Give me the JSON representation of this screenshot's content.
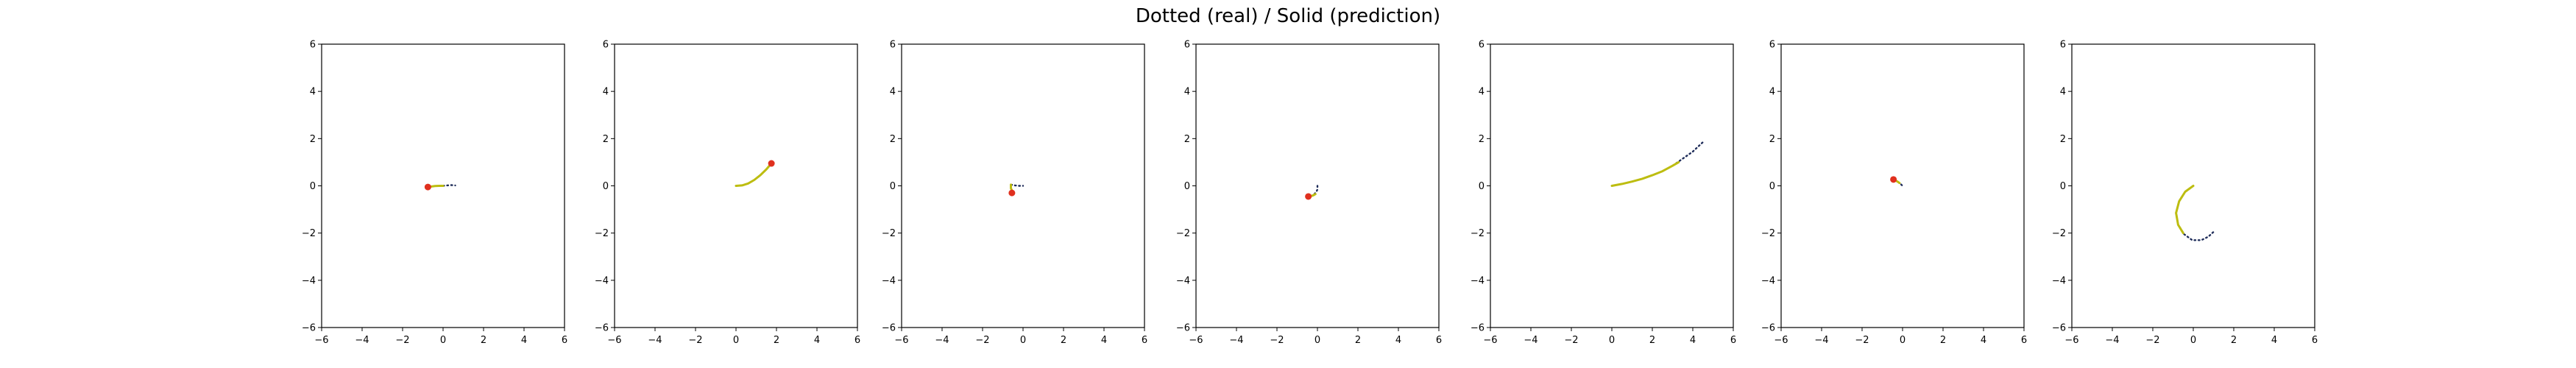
{
  "figure": {
    "title": "Dotted (real) / Solid (prediction)"
  },
  "style": {
    "real_color": "#1f2d5a",
    "prediction_color": "#bdbd10",
    "marker_color": "#e0301e"
  },
  "chart_data": [
    {
      "type": "line",
      "xlim": [
        -6,
        6
      ],
      "ylim": [
        -6,
        6
      ],
      "xticks": [
        -6,
        -4,
        -2,
        0,
        2,
        4,
        6
      ],
      "yticks": [
        -6,
        -4,
        -2,
        0,
        2,
        4,
        6
      ],
      "grid": false,
      "series": [
        {
          "style": "dotted",
          "x": [
            0,
            0.2,
            0.4,
            0.6
          ],
          "y": [
            0,
            0.02,
            0.03,
            0.02
          ]
        },
        {
          "style": "solid",
          "x": [
            0,
            -0.2,
            -0.4,
            -0.6,
            -0.75
          ],
          "y": [
            0,
            0,
            -0.01,
            -0.03,
            -0.05
          ]
        }
      ],
      "marker": {
        "x": -0.75,
        "y": -0.05
      }
    },
    {
      "type": "line",
      "xlim": [
        -6,
        6
      ],
      "ylim": [
        -6,
        6
      ],
      "xticks": [
        -6,
        -4,
        -2,
        0,
        2,
        4,
        6
      ],
      "yticks": [
        -6,
        -4,
        -2,
        0,
        2,
        4,
        6
      ],
      "grid": false,
      "series": [
        {
          "style": "dotted",
          "x": [
            0,
            0.3,
            0.6,
            0.9,
            1.2,
            1.5,
            1.75
          ],
          "y": [
            0,
            0.02,
            0.1,
            0.25,
            0.45,
            0.7,
            0.95
          ]
        },
        {
          "style": "solid",
          "x": [
            0,
            0.3,
            0.6,
            0.9,
            1.2,
            1.5,
            1.75
          ],
          "y": [
            0,
            0.02,
            0.1,
            0.25,
            0.45,
            0.7,
            0.95
          ]
        }
      ],
      "marker": {
        "x": 1.75,
        "y": 0.95
      }
    },
    {
      "type": "line",
      "xlim": [
        -6,
        6
      ],
      "ylim": [
        -6,
        6
      ],
      "xticks": [
        -6,
        -4,
        -2,
        0,
        2,
        4,
        6
      ],
      "yticks": [
        -6,
        -4,
        -2,
        0,
        2,
        4,
        6
      ],
      "grid": false,
      "series": [
        {
          "style": "dotted",
          "x": [
            -0.6,
            -0.4,
            -0.2,
            0
          ],
          "y": [
            0.05,
            0.02,
            0,
            0
          ]
        },
        {
          "style": "solid",
          "x": [
            -0.6,
            -0.6,
            -0.55,
            -0.55
          ],
          "y": [
            0.05,
            -0.1,
            -0.2,
            -0.3
          ]
        }
      ],
      "marker": {
        "x": -0.55,
        "y": -0.3
      }
    },
    {
      "type": "line",
      "xlim": [
        -6,
        6
      ],
      "ylim": [
        -6,
        6
      ],
      "xticks": [
        -6,
        -4,
        -2,
        0,
        2,
        4,
        6
      ],
      "yticks": [
        -6,
        -4,
        -2,
        0,
        2,
        4,
        6
      ],
      "grid": false,
      "series": [
        {
          "style": "dotted",
          "x": [
            0,
            0,
            -0.05,
            -0.15,
            -0.3,
            -0.45
          ],
          "y": [
            0,
            -0.15,
            -0.25,
            -0.35,
            -0.42,
            -0.45
          ]
        },
        {
          "style": "solid",
          "x": [
            -0.1,
            -0.2,
            -0.3,
            -0.45
          ],
          "y": [
            -0.35,
            -0.4,
            -0.43,
            -0.45
          ]
        }
      ],
      "marker": {
        "x": -0.45,
        "y": -0.45
      }
    },
    {
      "type": "line",
      "xlim": [
        -6,
        6
      ],
      "ylim": [
        -6,
        6
      ],
      "xticks": [
        -6,
        -4,
        -2,
        0,
        2,
        4,
        6
      ],
      "yticks": [
        -6,
        -4,
        -2,
        0,
        2,
        4,
        6
      ],
      "grid": false,
      "series": [
        {
          "style": "dotted",
          "x": [
            0,
            0.5,
            1,
            1.5,
            2,
            2.5,
            3,
            3.5,
            4,
            4.5
          ],
          "y": [
            0,
            0.08,
            0.18,
            0.3,
            0.45,
            0.62,
            0.85,
            1.15,
            1.45,
            1.85
          ]
        },
        {
          "style": "solid",
          "x": [
            0,
            0.5,
            1,
            1.5,
            2,
            2.5,
            3,
            3.3
          ],
          "y": [
            0,
            0.08,
            0.18,
            0.3,
            0.45,
            0.62,
            0.85,
            1.0
          ]
        }
      ]
    },
    {
      "type": "line",
      "xlim": [
        -6,
        6
      ],
      "ylim": [
        -6,
        6
      ],
      "xticks": [
        -6,
        -4,
        -2,
        0,
        2,
        4,
        6
      ],
      "yticks": [
        -6,
        -4,
        -2,
        0,
        2,
        4,
        6
      ],
      "grid": false,
      "series": [
        {
          "style": "dotted",
          "x": [
            -0.4,
            -0.25,
            -0.1,
            0
          ],
          "y": [
            0.25,
            0.18,
            0.08,
            0
          ]
        },
        {
          "style": "solid",
          "x": [
            -0.4,
            -0.25,
            -0.15
          ],
          "y": [
            0.25,
            0.18,
            0.12
          ]
        }
      ],
      "marker": {
        "x": -0.45,
        "y": 0.27
      }
    },
    {
      "type": "line",
      "xlim": [
        -6,
        6
      ],
      "ylim": [
        -6,
        6
      ],
      "xticks": [
        -6,
        -4,
        -2,
        0,
        2,
        4,
        6
      ],
      "yticks": [
        -6,
        -4,
        -2,
        0,
        2,
        4,
        6
      ],
      "grid": false,
      "series": [
        {
          "style": "dotted",
          "x": [
            0,
            -0.4,
            -0.7,
            -0.85,
            -0.75,
            -0.45,
            -0.05,
            0.4,
            0.75,
            1.0
          ],
          "y": [
            0,
            -0.25,
            -0.65,
            -1.15,
            -1.65,
            -2.05,
            -2.3,
            -2.3,
            -2.15,
            -1.95
          ]
        },
        {
          "style": "solid",
          "x": [
            0,
            -0.4,
            -0.7,
            -0.85,
            -0.75,
            -0.5
          ],
          "y": [
            0,
            -0.25,
            -0.65,
            -1.15,
            -1.65,
            -2.0
          ]
        }
      ]
    }
  ]
}
